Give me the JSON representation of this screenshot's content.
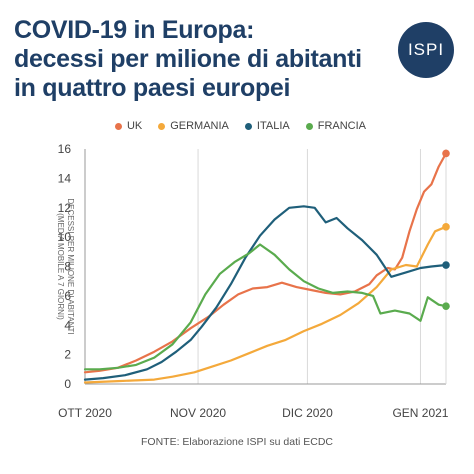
{
  "header": {
    "title_line1": "COVID-19 in Europa:",
    "title_line2": "decessi per milione di abitanti",
    "title_line3": "in quattro paesi europei",
    "logo_text": "ISPI"
  },
  "source": "FONTE: Elaborazione ISPI su dati ECDC",
  "colors": {
    "title": "#1f3f66",
    "logo_bg": "#1f3f66",
    "grid": "#d9d9d9",
    "axis": "#999999"
  },
  "chart_data": {
    "type": "line",
    "ylabel": "DECESSI PER MILIONE DI ABITANTI (MEDIA MOBILE A 7 GIORNI)",
    "xlabel": "",
    "ylim": [
      0,
      16
    ],
    "yticks": [
      0,
      2,
      4,
      6,
      8,
      10,
      12,
      14,
      16
    ],
    "xlim": [
      "2020-10-01",
      "2021-01-08"
    ],
    "xticks": [
      {
        "date": "2020-10-01",
        "label": "OTT 2020"
      },
      {
        "date": "2020-11-01",
        "label": "NOV 2020"
      },
      {
        "date": "2020-12-01",
        "label": "DIC 2020"
      },
      {
        "date": "2021-01-01",
        "label": "GEN 2021"
      }
    ],
    "grid": "vertical",
    "legend_position": "top",
    "series": [
      {
        "name": "UK",
        "color": "#e8734a",
        "points": [
          [
            "2020-10-01",
            0.8
          ],
          [
            "2020-10-05",
            0.9
          ],
          [
            "2020-10-10",
            1.1
          ],
          [
            "2020-10-15",
            1.6
          ],
          [
            "2020-10-20",
            2.2
          ],
          [
            "2020-10-25",
            2.9
          ],
          [
            "2020-10-30",
            3.8
          ],
          [
            "2020-11-04",
            4.6
          ],
          [
            "2020-11-08",
            5.4
          ],
          [
            "2020-11-12",
            6.1
          ],
          [
            "2020-11-16",
            6.5
          ],
          [
            "2020-11-20",
            6.6
          ],
          [
            "2020-11-24",
            6.9
          ],
          [
            "2020-11-28",
            6.6
          ],
          [
            "2020-12-02",
            6.4
          ],
          [
            "2020-12-06",
            6.2
          ],
          [
            "2020-12-10",
            6.1
          ],
          [
            "2020-12-14",
            6.3
          ],
          [
            "2020-12-18",
            6.8
          ],
          [
            "2020-12-20",
            7.4
          ],
          [
            "2020-12-23",
            7.9
          ],
          [
            "2020-12-25",
            7.8
          ],
          [
            "2020-12-27",
            8.6
          ],
          [
            "2020-12-29",
            10.4
          ],
          [
            "2020-12-31",
            11.9
          ],
          [
            "2021-01-02",
            13.1
          ],
          [
            "2021-01-04",
            13.6
          ],
          [
            "2021-01-06",
            14.8
          ],
          [
            "2021-01-08",
            15.7
          ]
        ]
      },
      {
        "name": "GERMANIA",
        "color": "#f4a93b",
        "points": [
          [
            "2020-10-01",
            0.1
          ],
          [
            "2020-10-10",
            0.2
          ],
          [
            "2020-10-20",
            0.3
          ],
          [
            "2020-10-25",
            0.5
          ],
          [
            "2020-10-31",
            0.8
          ],
          [
            "2020-11-05",
            1.2
          ],
          [
            "2020-11-10",
            1.6
          ],
          [
            "2020-11-15",
            2.1
          ],
          [
            "2020-11-20",
            2.6
          ],
          [
            "2020-11-25",
            3.0
          ],
          [
            "2020-11-30",
            3.6
          ],
          [
            "2020-12-05",
            4.1
          ],
          [
            "2020-12-10",
            4.7
          ],
          [
            "2020-12-15",
            5.5
          ],
          [
            "2020-12-20",
            6.6
          ],
          [
            "2020-12-24",
            7.8
          ],
          [
            "2020-12-28",
            8.1
          ],
          [
            "2020-12-31",
            8.0
          ],
          [
            "2021-01-03",
            9.5
          ],
          [
            "2021-01-05",
            10.4
          ],
          [
            "2021-01-08",
            10.7
          ]
        ]
      },
      {
        "name": "ITALIA",
        "color": "#1f5f7a",
        "points": [
          [
            "2020-10-01",
            0.3
          ],
          [
            "2020-10-06",
            0.4
          ],
          [
            "2020-10-12",
            0.6
          ],
          [
            "2020-10-18",
            1.0
          ],
          [
            "2020-10-22",
            1.5
          ],
          [
            "2020-10-26",
            2.2
          ],
          [
            "2020-10-30",
            3.0
          ],
          [
            "2020-11-02",
            3.9
          ],
          [
            "2020-11-06",
            5.2
          ],
          [
            "2020-11-10",
            6.8
          ],
          [
            "2020-11-14",
            8.6
          ],
          [
            "2020-11-18",
            10.1
          ],
          [
            "2020-11-22",
            11.2
          ],
          [
            "2020-11-26",
            12.0
          ],
          [
            "2020-11-30",
            12.1
          ],
          [
            "2020-12-03",
            12.0
          ],
          [
            "2020-12-06",
            11.0
          ],
          [
            "2020-12-09",
            11.3
          ],
          [
            "2020-12-12",
            10.6
          ],
          [
            "2020-12-16",
            9.8
          ],
          [
            "2020-12-20",
            8.8
          ],
          [
            "2020-12-24",
            7.3
          ],
          [
            "2020-12-28",
            7.6
          ],
          [
            "2021-01-01",
            7.9
          ],
          [
            "2021-01-04",
            8.0
          ],
          [
            "2021-01-08",
            8.1
          ]
        ]
      },
      {
        "name": "FRANCIA",
        "color": "#5aab4e",
        "points": [
          [
            "2020-10-01",
            1.0
          ],
          [
            "2020-10-05",
            1.0
          ],
          [
            "2020-10-10",
            1.1
          ],
          [
            "2020-10-15",
            1.3
          ],
          [
            "2020-10-20",
            1.8
          ],
          [
            "2020-10-25",
            2.7
          ],
          [
            "2020-10-30",
            4.2
          ],
          [
            "2020-11-03",
            6.1
          ],
          [
            "2020-11-07",
            7.5
          ],
          [
            "2020-11-11",
            8.3
          ],
          [
            "2020-11-15",
            8.9
          ],
          [
            "2020-11-18",
            9.5
          ],
          [
            "2020-11-22",
            8.8
          ],
          [
            "2020-11-26",
            7.8
          ],
          [
            "2020-11-30",
            7.0
          ],
          [
            "2020-12-04",
            6.5
          ],
          [
            "2020-12-08",
            6.2
          ],
          [
            "2020-12-12",
            6.3
          ],
          [
            "2020-12-16",
            6.2
          ],
          [
            "2020-12-19",
            6.0
          ],
          [
            "2020-12-21",
            4.8
          ],
          [
            "2020-12-25",
            5.0
          ],
          [
            "2020-12-29",
            4.8
          ],
          [
            "2021-01-01",
            4.3
          ],
          [
            "2021-01-03",
            5.9
          ],
          [
            "2021-01-06",
            5.4
          ],
          [
            "2021-01-08",
            5.3
          ]
        ]
      }
    ]
  }
}
